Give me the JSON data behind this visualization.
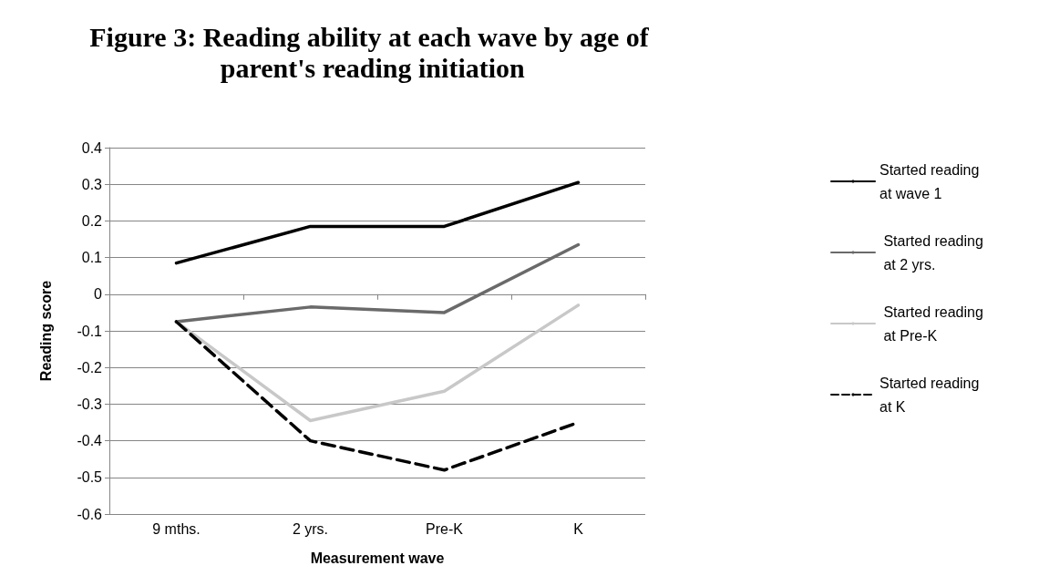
{
  "chart_data": {
    "type": "line",
    "title": "Figure 3: Reading ability at each wave by age of parent's reading initiation",
    "xlabel": "Measurement wave",
    "ylabel": "Reading score",
    "categories": [
      "9 mths.",
      "2 yrs.",
      "Pre-K",
      "K"
    ],
    "series": [
      {
        "name": "Started reading at wave 1",
        "color": "#000000",
        "values": [
          0.085,
          0.185,
          0.185,
          0.305
        ]
      },
      {
        "name": " Started reading at 2 yrs.",
        "color": "#6a6a6a",
        "values": [
          -0.075,
          -0.035,
          -0.05,
          0.135
        ]
      },
      {
        "name": " Started reading at Pre-K",
        "color": "#c8c8c8",
        "values": [
          -0.075,
          -0.345,
          -0.265,
          -0.03
        ]
      },
      {
        "name": "Started reading at K",
        "color": "#000000",
        "values": [
          -0.075,
          -0.4,
          -0.48,
          -0.35
        ],
        "line_style": "dashed"
      }
    ],
    "ylim": [
      -0.6,
      0.4
    ],
    "yticks": [
      -0.6,
      -0.5,
      -0.4,
      -0.3,
      -0.2,
      -0.1,
      0,
      0.1,
      0.2,
      0.3,
      0.4
    ],
    "grid": "y",
    "legend": "right",
    "marker": "none"
  }
}
